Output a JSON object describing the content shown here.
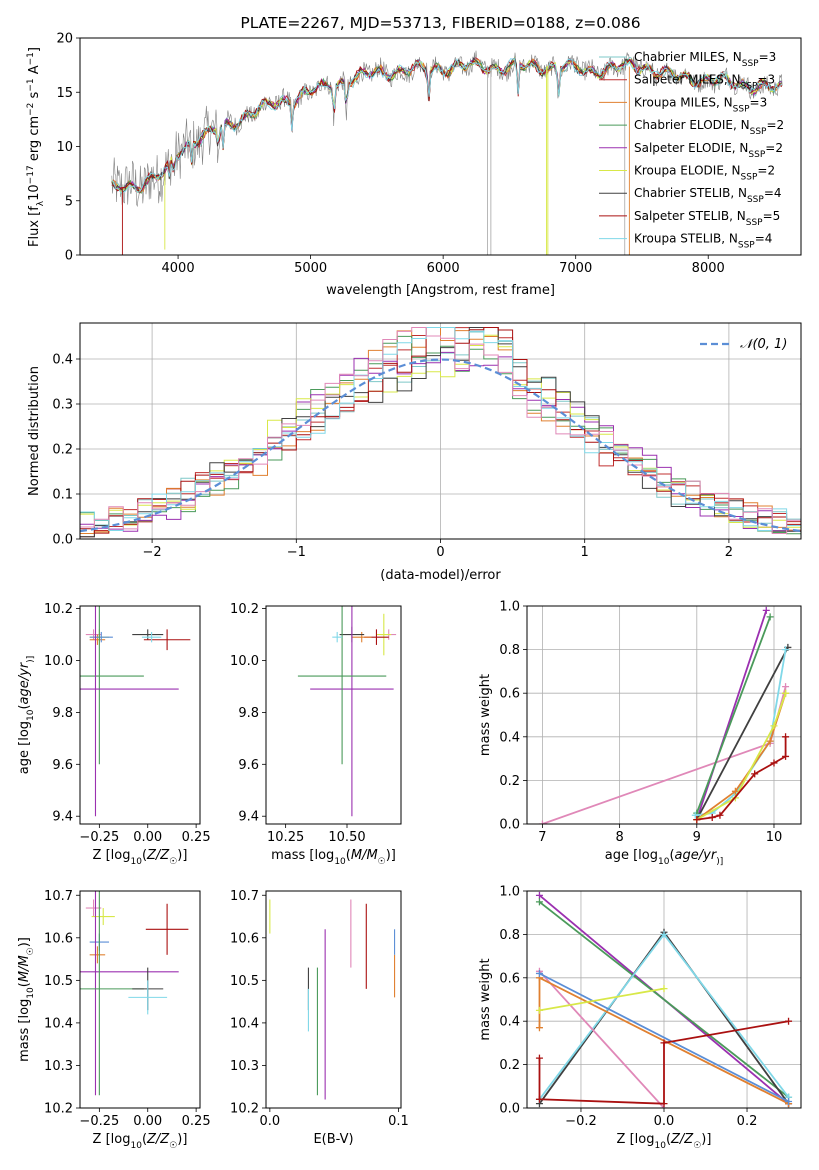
{
  "chart_data": [
    {
      "id": "spectrum",
      "type": "line",
      "title": "PLATE=2267, MJD=53713, FIBERID=0188, z=0.086",
      "xlabel": "wavelength [Angstrom, rest frame]",
      "ylabel_parts": [
        "Flux [f",
        "λ",
        "10",
        "−17",
        " erg cm",
        "−2",
        " s",
        "−1",
        " A",
        "−1",
        "]"
      ],
      "xlim": [
        3260,
        8700
      ],
      "ylim": [
        0,
        20
      ],
      "xticks": [
        4000,
        5000,
        6000,
        7000,
        8000
      ],
      "yticks": [
        0,
        5,
        10,
        15,
        20
      ],
      "legend_position": "upper-right",
      "data_color": "#808080",
      "series": [
        {
          "name": "Chabrier MILES, N",
          "sub": "SSP",
          "suffix": "=3",
          "color": "#7ec8c8"
        },
        {
          "name": "Salpeter MILES, N",
          "sub": "SSP",
          "suffix": "=3",
          "color": "#c03030"
        },
        {
          "name": "Kroupa MILES, N",
          "sub": "SSP",
          "suffix": "=3",
          "color": "#e08030"
        },
        {
          "name": "Chabrier ELODIE, N",
          "sub": "SSP",
          "suffix": "=2",
          "color": "#4a9a5a"
        },
        {
          "name": "Salpeter ELODIE, N",
          "sub": "SSP",
          "suffix": "=2",
          "color": "#9b30b0"
        },
        {
          "name": "Kroupa ELODIE, N",
          "sub": "SSP",
          "suffix": "=2",
          "color": "#d8e848"
        },
        {
          "name": "Chabrier STELIB, N",
          "sub": "SSP",
          "suffix": "=4",
          "color": "#404040"
        },
        {
          "name": "Salpeter STELIB, N",
          "sub": "SSP",
          "suffix": "=5",
          "color": "#aa1010"
        },
        {
          "name": "Kroupa STELIB, N",
          "sub": "SSP",
          "suffix": "=4",
          "color": "#80d8e8"
        }
      ],
      "continuum": {
        "x": [
          3500,
          3700,
          3900,
          4000,
          4100,
          4300,
          4500,
          4700,
          4900,
          5100,
          5300,
          5500,
          5700,
          5900,
          6100,
          6300,
          6500,
          6700,
          6900,
          7100,
          7300,
          7500,
          7700,
          7900,
          8100,
          8300,
          8500
        ],
        "y": [
          6.0,
          6.5,
          7.5,
          9.5,
          10.5,
          11.5,
          12.8,
          13.8,
          14.6,
          15.4,
          16.2,
          16.8,
          17.0,
          17.2,
          17.3,
          17.4,
          17.3,
          17.4,
          17.3,
          17.0,
          17.2,
          17.5,
          16.5,
          16.3,
          16.0,
          15.7,
          15.3
        ]
      }
    },
    {
      "id": "residuals",
      "type": "step-histogram",
      "xlabel": "(data-model)/error",
      "ylabel": "Normed distribution",
      "xlim": [
        -2.5,
        2.5
      ],
      "ylim": [
        0,
        0.48
      ],
      "xticks": [
        -2,
        -1,
        0,
        1,
        2
      ],
      "xtick_labels": [
        "−2",
        "−1",
        "0",
        "1",
        "2"
      ],
      "yticks": [
        0.0,
        0.1,
        0.2,
        0.3,
        0.4
      ],
      "yticks_labels": [
        "0.0",
        "0.1",
        "0.2",
        "0.3",
        "0.4"
      ],
      "grid": true,
      "legend_label": "𝒩(0, 1)",
      "legend_position": "upper-right",
      "gauss_color": "#5b8ed6"
    },
    {
      "id": "age-vs-Z",
      "type": "errorbar",
      "xlabel": "Z [log10(Z/Z☉)]",
      "xlabel_parts": [
        "Z [log",
        "10",
        "(",
        "Z/Z",
        "☉",
        ")]"
      ],
      "ylabel_parts": [
        "age  [log",
        "10",
        "(",
        "age/yr",
        ")]"
      ],
      "xlim": [
        -0.35,
        0.27
      ],
      "ylim": [
        9.37,
        10.21
      ],
      "xticks": [
        -0.25,
        0.0,
        0.25
      ],
      "xtick_labels": [
        "−0.25",
        "0.00",
        "0.25"
      ],
      "yticks": [
        9.4,
        9.6,
        9.8,
        10.0,
        10.2
      ],
      "ytick_labels": [
        "9.4",
        "9.6",
        "9.8",
        "10.0",
        "10.2"
      ],
      "points": [
        {
          "x": -0.25,
          "xerr": 0.05,
          "y": 10.09,
          "yerr": 0.03,
          "color": "#d8e848"
        },
        {
          "x": -0.28,
          "xerr": 0.04,
          "y": 10.1,
          "yerr": 0.02,
          "color": "#e088b8"
        },
        {
          "x": -0.26,
          "xerr": 0.04,
          "y": 10.08,
          "yerr": 0.02,
          "color": "#e08030"
        },
        {
          "x": -0.24,
          "xerr": 0.06,
          "y": 10.09,
          "yerr": 0.02,
          "color": "#5b8ed6"
        },
        {
          "x": -0.25,
          "xerr": 0.23,
          "y": 9.94,
          "yerr": 0.34,
          "color": "#4a9a5a"
        },
        {
          "x": -0.27,
          "xerr": 0.43,
          "y": 9.89,
          "yerr": 0.49,
          "color": "#9b30b0"
        },
        {
          "x": 0.0,
          "xerr": 0.08,
          "y": 10.1,
          "yerr": 0.02,
          "color": "#404040"
        },
        {
          "x": 0.1,
          "xerr": 0.12,
          "y": 10.08,
          "yerr": 0.04,
          "color": "#aa1010"
        },
        {
          "x": 0.02,
          "xerr": 0.05,
          "y": 10.09,
          "yerr": 0.02,
          "color": "#80d8e8"
        }
      ]
    },
    {
      "id": "age-vs-mass",
      "type": "errorbar",
      "xlabel_parts": [
        "mass [log",
        "10",
        "(",
        "M/M",
        "☉",
        ")]"
      ],
      "xlim": [
        10.17,
        10.72
      ],
      "ylim": [
        9.37,
        10.21
      ],
      "xticks": [
        10.25,
        10.5
      ],
      "xtick_labels": [
        "10.25",
        "10.50"
      ],
      "yticks": [
        9.4,
        9.6,
        9.8,
        10.0,
        10.2
      ],
      "ytick_labels": [
        "9.4",
        "9.6",
        "9.8",
        "10.0",
        "10.2"
      ],
      "points": [
        {
          "x": 10.67,
          "xerr": 0.03,
          "y": 10.1,
          "yerr": 0.02,
          "color": "#e088b8"
        },
        {
          "x": 10.65,
          "xerr": 0.03,
          "y": 10.1,
          "yerr": 0.08,
          "color": "#d8e848"
        },
        {
          "x": 10.62,
          "xerr": 0.05,
          "y": 10.09,
          "yerr": 0.03,
          "color": "#aa1010"
        },
        {
          "x": 10.56,
          "xerr": 0.04,
          "y": 10.09,
          "yerr": 0.02,
          "color": "#e08030"
        },
        {
          "x": 10.52,
          "xerr": 0.05,
          "y": 10.1,
          "yerr": 0.03,
          "color": "#404040"
        },
        {
          "x": 10.52,
          "xerr": 0.17,
          "y": 9.89,
          "yerr": 0.49,
          "color": "#9b30b0"
        },
        {
          "x": 10.48,
          "xerr": 0.18,
          "y": 9.94,
          "yerr": 0.34,
          "color": "#4a9a5a"
        },
        {
          "x": 10.46,
          "xerr": 0.02,
          "y": 10.09,
          "yerr": 0.02,
          "color": "#80d8e8"
        }
      ]
    },
    {
      "id": "massweight-vs-age",
      "type": "line",
      "xlabel_parts": [
        "age  [log",
        "10",
        "(",
        "age/yr",
        ")]"
      ],
      "ylabel": "mass weight",
      "xlim": [
        6.8,
        10.35
      ],
      "ylim": [
        0,
        1.0
      ],
      "xticks": [
        7,
        8,
        9,
        10
      ],
      "xtick_labels": [
        "7",
        "8",
        "9",
        "10"
      ],
      "yticks": [
        0.0,
        0.2,
        0.4,
        0.6,
        0.8,
        1.0
      ],
      "ytick_labels": [
        "0.0",
        "0.2",
        "0.4",
        "0.6",
        "0.8",
        "1.0"
      ],
      "grid": true,
      "series": [
        {
          "color": "#e088b8",
          "x": [
            7.0,
            9.95,
            10.15
          ],
          "y": [
            0.0,
            0.37,
            0.63
          ]
        },
        {
          "color": "#9b30b0",
          "x": [
            9.0,
            9.9
          ],
          "y": [
            0.02,
            0.98
          ]
        },
        {
          "color": "#4a9a5a",
          "x": [
            9.0,
            9.95
          ],
          "y": [
            0.05,
            0.95
          ]
        },
        {
          "color": "#404040",
          "x": [
            9.0,
            10.18
          ],
          "y": [
            0.02,
            0.81
          ]
        },
        {
          "color": "#80d8e8",
          "x": [
            8.98,
            9.2,
            9.5,
            9.95,
            10.15
          ],
          "y": [
            0.04,
            0.05,
            0.14,
            0.38,
            0.8
          ]
        },
        {
          "color": "#e08030",
          "x": [
            9.0,
            9.5,
            9.95,
            10.15
          ],
          "y": [
            0.02,
            0.15,
            0.38,
            0.6
          ]
        },
        {
          "color": "#d8e848",
          "x": [
            9.0,
            9.5,
            10.0,
            10.15
          ],
          "y": [
            0.02,
            0.12,
            0.45,
            0.6
          ]
        },
        {
          "color": "#aa1010",
          "x": [
            9.0,
            9.2,
            9.3,
            9.75,
            10.0,
            10.15,
            10.15
          ],
          "y": [
            0.02,
            0.03,
            0.04,
            0.23,
            0.28,
            0.31,
            0.4
          ]
        }
      ]
    },
    {
      "id": "mass-vs-Z",
      "type": "errorbar",
      "xlabel_parts": [
        "Z [log",
        "10",
        "(",
        "Z/Z",
        "☉",
        ")]"
      ],
      "ylabel_parts": [
        "mass [log",
        "10",
        "(",
        "M/M",
        "☉",
        ")]"
      ],
      "xlim": [
        -0.35,
        0.27
      ],
      "ylim": [
        10.2,
        10.71
      ],
      "xticks": [
        -0.25,
        0.0,
        0.25
      ],
      "xtick_labels": [
        "−0.25",
        "0.00",
        "0.25"
      ],
      "yticks": [
        10.2,
        10.3,
        10.4,
        10.5,
        10.6,
        10.7
      ],
      "ytick_labels": [
        "10.2",
        "10.3",
        "10.4",
        "10.5",
        "10.6",
        "10.7"
      ],
      "points": [
        {
          "x": -0.28,
          "xerr": 0.04,
          "y": 10.67,
          "yerr": 0.02,
          "color": "#e088b8"
        },
        {
          "x": -0.23,
          "xerr": 0.06,
          "y": 10.65,
          "yerr": 0.02,
          "color": "#d8e848"
        },
        {
          "x": -0.25,
          "xerr": 0.05,
          "y": 10.59,
          "yerr": 0.02,
          "color": "#5b8ed6"
        },
        {
          "x": -0.26,
          "xerr": 0.04,
          "y": 10.56,
          "yerr": 0.02,
          "color": "#e08030"
        },
        {
          "x": -0.27,
          "xerr": 0.43,
          "y": 10.52,
          "yerr": 0.29,
          "color": "#9b30b0"
        },
        {
          "x": -0.25,
          "xerr": 0.23,
          "y": 10.48,
          "yerr": 0.25,
          "color": "#4a9a5a"
        },
        {
          "x": 0.0,
          "xerr": 0.08,
          "y": 10.48,
          "yerr": 0.05,
          "color": "#404040"
        },
        {
          "x": 0.1,
          "xerr": 0.11,
          "y": 10.62,
          "yerr": 0.06,
          "color": "#aa1010"
        },
        {
          "x": 0.0,
          "xerr": 0.1,
          "y": 10.46,
          "yerr": 0.04,
          "color": "#80d8e8"
        }
      ]
    },
    {
      "id": "mass-vs-ebv",
      "type": "errorbar",
      "xlabel": "E(B-V)",
      "xlim": [
        -0.003,
        0.102
      ],
      "ylim": [
        10.2,
        10.71
      ],
      "xticks": [
        0.0,
        0.1
      ],
      "xtick_labels": [
        "0.0",
        "0.1"
      ],
      "yticks": [
        10.2,
        10.3,
        10.4,
        10.5,
        10.6,
        10.7
      ],
      "ytick_labels": [
        "10.2",
        "10.3",
        "10.4",
        "10.5",
        "10.6",
        "10.7"
      ],
      "points": [
        {
          "x": 0.0,
          "y": 10.65,
          "yerr": 0.04,
          "color": "#d8e848"
        },
        {
          "x": 0.03,
          "y": 10.48,
          "yerr": 0.05,
          "color": "#404040"
        },
        {
          "x": 0.03,
          "y": 10.43,
          "yerr": 0.05,
          "color": "#80d8e8"
        },
        {
          "x": 0.037,
          "y": 10.38,
          "yerr": 0.15,
          "color": "#4a9a5a"
        },
        {
          "x": 0.043,
          "y": 10.42,
          "yerr": 0.2,
          "color": "#9b30b0"
        },
        {
          "x": 0.063,
          "y": 10.61,
          "yerr": 0.08,
          "color": "#e088b8"
        },
        {
          "x": 0.075,
          "y": 10.58,
          "yerr": 0.1,
          "color": "#aa1010"
        },
        {
          "x": 0.097,
          "y": 10.51,
          "yerr": 0.05,
          "color": "#e08030"
        },
        {
          "x": 0.097,
          "y": 10.59,
          "yerr": 0.03,
          "color": "#5b8ed6"
        }
      ]
    },
    {
      "id": "massweight-vs-Z",
      "type": "line",
      "xlabel_parts": [
        "Z [log",
        "10",
        "(",
        "Z/Z",
        "☉",
        ")]"
      ],
      "ylabel": "mass weight",
      "xlim": [
        -0.33,
        0.33
      ],
      "ylim": [
        0,
        1.0
      ],
      "xticks": [
        -0.2,
        0.0,
        0.2
      ],
      "xtick_labels": [
        "−0.2",
        "0.0",
        "0.2"
      ],
      "yticks": [
        0.0,
        0.2,
        0.4,
        0.6,
        0.8,
        1.0
      ],
      "ytick_labels": [
        "0.0",
        "0.2",
        "0.4",
        "0.6",
        "0.8",
        "1.0"
      ],
      "grid": true,
      "series": [
        {
          "color": "#9b30b0",
          "x": [
            -0.3,
            0.3
          ],
          "y": [
            0.98,
            0.02
          ]
        },
        {
          "color": "#4a9a5a",
          "x": [
            -0.3,
            0.3
          ],
          "y": [
            0.95,
            0.05
          ]
        },
        {
          "color": "#404040",
          "x": [
            -0.3,
            0.0,
            0.3
          ],
          "y": [
            0.02,
            0.81,
            0.02
          ]
        },
        {
          "color": "#80d8e8",
          "x": [
            -0.3,
            0.0,
            0.3
          ],
          "y": [
            0.04,
            0.8,
            0.05
          ]
        },
        {
          "color": "#e088b8",
          "x": [
            -0.3,
            0.0
          ],
          "y": [
            0.63,
            0.0
          ]
        },
        {
          "color": "#e08030",
          "x": [
            -0.3,
            -0.3,
            0.3
          ],
          "y": [
            0.37,
            0.6,
            0.02
          ]
        },
        {
          "color": "#5b8ed6",
          "x": [
            -0.3,
            0.3
          ],
          "y": [
            0.62,
            0.03
          ]
        },
        {
          "color": "#d8e848",
          "x": [
            -0.3,
            0.0
          ],
          "y": [
            0.45,
            0.55
          ]
        },
        {
          "color": "#aa1010",
          "x": [
            -0.3,
            -0.3,
            0.0,
            0.0,
            0.3
          ],
          "y": [
            0.23,
            0.04,
            0.02,
            0.3,
            0.4
          ]
        }
      ]
    }
  ]
}
